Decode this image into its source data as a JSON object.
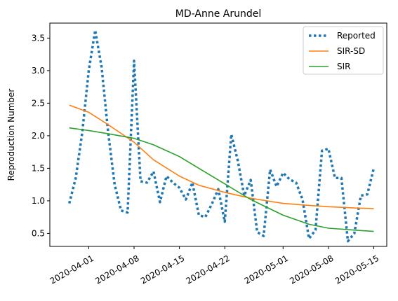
{
  "chart_data": {
    "type": "line",
    "title": "MD-Anne Arundel",
    "xlabel": "",
    "ylabel": "Reproduction Number",
    "x_ticks": [
      "2020-04-01",
      "2020-04-08",
      "2020-04-15",
      "2020-04-22",
      "2020-05-01",
      "2020-05-08",
      "2020-05-15"
    ],
    "y_ticks": [
      0.5,
      1.0,
      1.5,
      2.0,
      2.5,
      3.0,
      3.5
    ],
    "xlim": [
      "2020-03-26",
      "2020-05-17"
    ],
    "ylim": [
      0.3,
      3.73
    ],
    "grid": false,
    "legend_position": "top-right",
    "series": [
      {
        "name": "Reported",
        "color": "#1f77b4",
        "style": "dotted",
        "points": [
          [
            "2020-03-29",
            0.96
          ],
          [
            "2020-03-30",
            1.35
          ],
          [
            "2020-03-31",
            2.05
          ],
          [
            "2020-04-01",
            3.0
          ],
          [
            "2020-04-02",
            3.62
          ],
          [
            "2020-04-03",
            3.05
          ],
          [
            "2020-04-04",
            2.05
          ],
          [
            "2020-04-05",
            1.25
          ],
          [
            "2020-04-06",
            0.85
          ],
          [
            "2020-04-07",
            0.82
          ],
          [
            "2020-04-08",
            3.15
          ],
          [
            "2020-04-09",
            1.3
          ],
          [
            "2020-04-10",
            1.28
          ],
          [
            "2020-04-11",
            1.45
          ],
          [
            "2020-04-12",
            0.98
          ],
          [
            "2020-04-13",
            1.38
          ],
          [
            "2020-04-14",
            1.28
          ],
          [
            "2020-04-15",
            1.2
          ],
          [
            "2020-04-16",
            1.02
          ],
          [
            "2020-04-17",
            1.28
          ],
          [
            "2020-04-18",
            0.78
          ],
          [
            "2020-04-19",
            0.75
          ],
          [
            "2020-04-20",
            0.95
          ],
          [
            "2020-04-21",
            1.18
          ],
          [
            "2020-04-22",
            0.68
          ],
          [
            "2020-04-23",
            2.02
          ],
          [
            "2020-04-24",
            1.62
          ],
          [
            "2020-04-25",
            1.08
          ],
          [
            "2020-04-26",
            1.32
          ],
          [
            "2020-04-27",
            0.52
          ],
          [
            "2020-04-28",
            0.46
          ],
          [
            "2020-04-29",
            1.48
          ],
          [
            "2020-04-30",
            1.22
          ],
          [
            "2020-05-01",
            1.43
          ],
          [
            "2020-05-02",
            1.33
          ],
          [
            "2020-05-03",
            1.28
          ],
          [
            "2020-05-04",
            1.02
          ],
          [
            "2020-05-05",
            0.42
          ],
          [
            "2020-05-06",
            0.55
          ],
          [
            "2020-05-07",
            1.77
          ],
          [
            "2020-05-08",
            1.8
          ],
          [
            "2020-05-09",
            1.35
          ],
          [
            "2020-05-10",
            1.35
          ],
          [
            "2020-05-11",
            0.38
          ],
          [
            "2020-05-12",
            0.5
          ],
          [
            "2020-05-13",
            1.08
          ],
          [
            "2020-05-14",
            1.1
          ],
          [
            "2020-05-15",
            1.5
          ]
        ]
      },
      {
        "name": "SIR-SD",
        "color": "#ff7f0e",
        "style": "solid",
        "points": [
          [
            "2020-03-29",
            2.47
          ],
          [
            "2020-04-01",
            2.36
          ],
          [
            "2020-04-04",
            2.17
          ],
          [
            "2020-04-08",
            1.9
          ],
          [
            "2020-04-11",
            1.63
          ],
          [
            "2020-04-15",
            1.38
          ],
          [
            "2020-04-18",
            1.24
          ],
          [
            "2020-04-22",
            1.13
          ],
          [
            "2020-04-26",
            1.04
          ],
          [
            "2020-05-01",
            0.96
          ],
          [
            "2020-05-05",
            0.93
          ],
          [
            "2020-05-08",
            0.91
          ],
          [
            "2020-05-12",
            0.89
          ],
          [
            "2020-05-15",
            0.88
          ]
        ]
      },
      {
        "name": "SIR",
        "color": "#2ca02c",
        "style": "solid",
        "points": [
          [
            "2020-03-29",
            2.12
          ],
          [
            "2020-04-01",
            2.08
          ],
          [
            "2020-04-04",
            2.03
          ],
          [
            "2020-04-08",
            1.96
          ],
          [
            "2020-04-11",
            1.86
          ],
          [
            "2020-04-15",
            1.68
          ],
          [
            "2020-04-18",
            1.5
          ],
          [
            "2020-04-22",
            1.26
          ],
          [
            "2020-04-26",
            1.02
          ],
          [
            "2020-05-01",
            0.78
          ],
          [
            "2020-05-05",
            0.64
          ],
          [
            "2020-05-08",
            0.58
          ],
          [
            "2020-05-12",
            0.55
          ],
          [
            "2020-05-15",
            0.53
          ]
        ]
      }
    ]
  }
}
